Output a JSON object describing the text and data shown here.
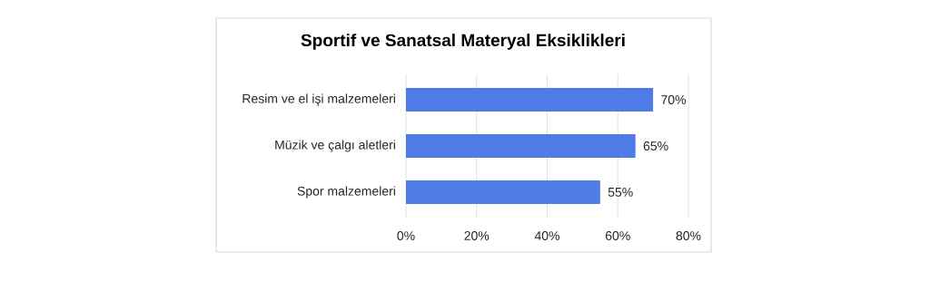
{
  "chart_data": {
    "type": "bar",
    "orientation": "horizontal",
    "title": "Sportif ve Sanatsal Materyal Eksiklikleri",
    "categories": [
      "Resim ve el işi malzemeleri",
      "Müzik ve çalgı aletleri",
      "Spor malzemeleri"
    ],
    "values": [
      70,
      65,
      55
    ],
    "value_labels": [
      "70%",
      "65%",
      "55%"
    ],
    "color": "#4f7be6",
    "xlim": [
      0,
      80
    ],
    "xticks": [
      {
        "value": 0,
        "label": "0%"
      },
      {
        "value": 20,
        "label": "20%"
      },
      {
        "value": 40,
        "label": "40%"
      },
      {
        "value": 60,
        "label": "60%"
      },
      {
        "value": 80,
        "label": "80%"
      }
    ],
    "grid": "x"
  }
}
